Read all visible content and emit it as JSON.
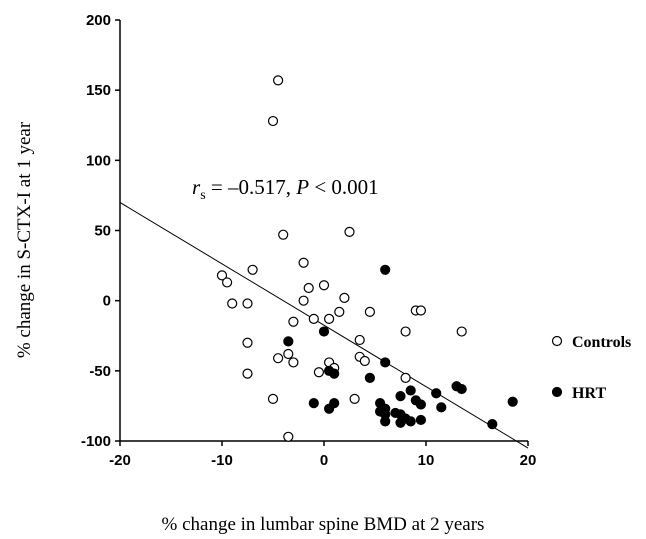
{
  "chart_data": {
    "type": "scatter",
    "xlabel": "% change in lumbar spine BMD at 2 years",
    "ylabel": "% change in S-CTX-I at 1 year",
    "xlim": [
      -20,
      20
    ],
    "ylim": [
      -100,
      200
    ],
    "xticks": [
      "-20",
      "-10",
      "0",
      "10",
      "20"
    ],
    "yticks": [
      "-100",
      "-50",
      "0",
      "50",
      "100",
      "150",
      "200"
    ],
    "grid": false,
    "legend_position": "right",
    "annotation": {
      "r": "r",
      "sub": "s",
      "eq": " = –0.517, ",
      "p": "P",
      "rest": " < 0.001"
    },
    "regression_line": {
      "x": [
        -20,
        20
      ],
      "y": [
        70,
        -105
      ]
    },
    "series": [
      {
        "name": "Controls",
        "marker": "open-circle",
        "points": [
          [
            -4.5,
            157
          ],
          [
            -5,
            128
          ],
          [
            -4,
            47
          ],
          [
            2.5,
            49
          ],
          [
            -7,
            22
          ],
          [
            -10,
            18
          ],
          [
            -9.5,
            13
          ],
          [
            -2,
            27
          ],
          [
            -1.5,
            9
          ],
          [
            0,
            11
          ],
          [
            -9,
            -2
          ],
          [
            -7.5,
            -2
          ],
          [
            -2,
            0
          ],
          [
            2,
            2
          ],
          [
            -1,
            -13
          ],
          [
            0.5,
            -13
          ],
          [
            1.5,
            -8
          ],
          [
            4.5,
            -8
          ],
          [
            -3,
            -15
          ],
          [
            9,
            -7
          ],
          [
            9.5,
            -7
          ],
          [
            13.5,
            -22
          ],
          [
            8,
            -22
          ],
          [
            3.5,
            -28
          ],
          [
            -7.5,
            -30
          ],
          [
            -3.5,
            -38
          ],
          [
            -4.5,
            -41
          ],
          [
            -3,
            -44
          ],
          [
            3.5,
            -40
          ],
          [
            4,
            -43
          ],
          [
            0.5,
            -44
          ],
          [
            1,
            -48
          ],
          [
            -0.5,
            -51
          ],
          [
            -7.5,
            -52
          ],
          [
            8,
            -55
          ],
          [
            -5,
            -70
          ],
          [
            3,
            -70
          ],
          [
            -3.5,
            -97
          ]
        ]
      },
      {
        "name": "HRT",
        "marker": "filled-circle",
        "points": [
          [
            6,
            22
          ],
          [
            -3.5,
            -29
          ],
          [
            0,
            -22
          ],
          [
            6,
            -44
          ],
          [
            0.5,
            -50
          ],
          [
            1,
            -52
          ],
          [
            4.5,
            -55
          ],
          [
            13,
            -61
          ],
          [
            13.5,
            -63
          ],
          [
            8.5,
            -64
          ],
          [
            11,
            -66
          ],
          [
            7.5,
            -68
          ],
          [
            9,
            -71
          ],
          [
            -1,
            -73
          ],
          [
            1,
            -73
          ],
          [
            5.5,
            -73
          ],
          [
            9.5,
            -74
          ],
          [
            0.5,
            -77
          ],
          [
            6,
            -77
          ],
          [
            7,
            -80
          ],
          [
            7.5,
            -81
          ],
          [
            11.5,
            -76
          ],
          [
            5.5,
            -79
          ],
          [
            6,
            -81
          ],
          [
            8,
            -84
          ],
          [
            6,
            -86
          ],
          [
            7.5,
            -87
          ],
          [
            8.5,
            -86
          ],
          [
            9.5,
            -85
          ],
          [
            16.5,
            -88
          ],
          [
            18.5,
            -72
          ]
        ]
      }
    ]
  }
}
